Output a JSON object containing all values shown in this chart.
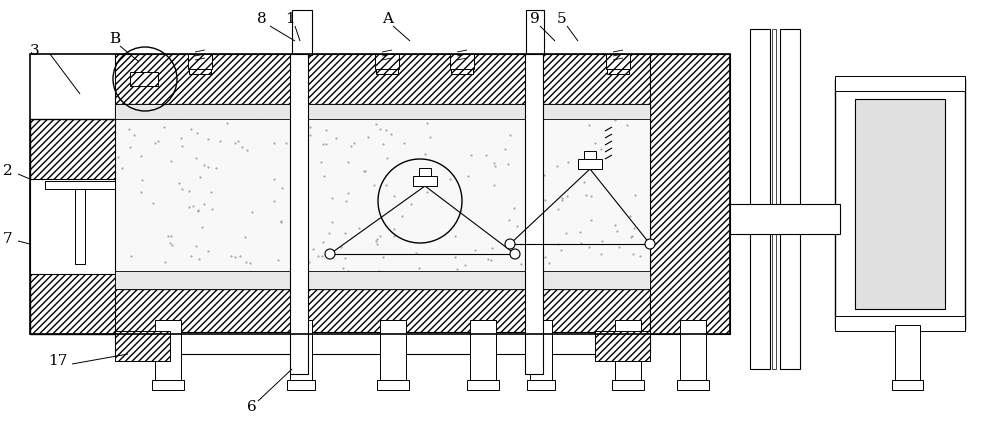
{
  "bg_color": "#ffffff",
  "lw": 0.8,
  "fig_width": 10.0,
  "fig_height": 4.29,
  "dpi": 100
}
